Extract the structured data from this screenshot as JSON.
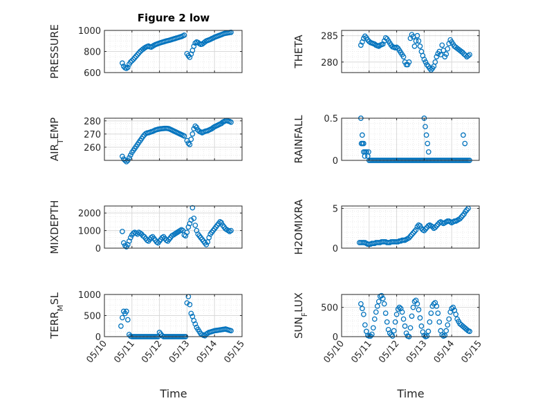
{
  "figure": {
    "title": "Figure 2 low",
    "xlabel": "Time"
  },
  "colors": {
    "marker": "#0072BD",
    "axis": "#262626",
    "grid": "#d9d9d9"
  },
  "x_ticks": [
    {
      "value": 0,
      "label": "05/10"
    },
    {
      "value": 1,
      "label": "05/11"
    },
    {
      "value": 2,
      "label": "05/12"
    },
    {
      "value": 3,
      "label": "05/13"
    },
    {
      "value": 4,
      "label": "05/14"
    },
    {
      "value": 5,
      "label": "05/15"
    }
  ],
  "chart_data": [
    {
      "type": "scatter",
      "title": "Figure 2 low",
      "xlabel": "",
      "ylabel": "PRESSURE",
      "ylim": [
        600,
        1000
      ],
      "yticks": [
        600,
        800,
        1000
      ],
      "grid": "on",
      "x": [
        0.65,
        0.7,
        0.75,
        0.8,
        0.85,
        0.9,
        0.95,
        1.0,
        1.05,
        1.1,
        1.15,
        1.2,
        1.25,
        1.3,
        1.35,
        1.4,
        1.45,
        1.5,
        1.55,
        1.6,
        1.65,
        1.7,
        1.75,
        1.8,
        1.85,
        1.9,
        1.95,
        2.0,
        2.05,
        2.1,
        2.15,
        2.2,
        2.25,
        2.3,
        2.35,
        2.4,
        2.45,
        2.5,
        2.55,
        2.6,
        2.65,
        2.7,
        2.75,
        2.8,
        2.85,
        2.9,
        3.0,
        3.05,
        3.1,
        3.15,
        3.2,
        3.25,
        3.3,
        3.35,
        3.4,
        3.45,
        3.5,
        3.55,
        3.6,
        3.65,
        3.7,
        3.75,
        3.8,
        3.85,
        3.9,
        3.95,
        4.0,
        4.05,
        4.1,
        4.15,
        4.2,
        4.25,
        4.3,
        4.35,
        4.4,
        4.45,
        4.5,
        4.55,
        4.6
      ],
      "y": [
        690,
        660,
        645,
        640,
        650,
        680,
        700,
        712,
        725,
        740,
        755,
        770,
        785,
        800,
        812,
        822,
        832,
        840,
        847,
        852,
        845,
        842,
        850,
        858,
        865,
        870,
        875,
        880,
        884,
        888,
        892,
        896,
        900,
        903,
        906,
        910,
        914,
        918,
        922,
        926,
        930,
        934,
        938,
        942,
        948,
        955,
        780,
        760,
        745,
        775,
        810,
        850,
        880,
        890,
        885,
        875,
        868,
        870,
        880,
        890,
        900,
        905,
        910,
        915,
        922,
        928,
        935,
        940,
        945,
        950,
        955,
        960,
        965,
        970,
        973,
        975,
        978,
        980,
        982
      ]
    },
    {
      "type": "scatter",
      "xlabel": "",
      "ylabel": "THETA",
      "ylim": [
        278,
        286
      ],
      "yticks": [
        280,
        285
      ],
      "grid": "on",
      "x": [
        0.7,
        0.75,
        0.8,
        0.85,
        0.9,
        0.95,
        1.0,
        1.05,
        1.1,
        1.15,
        1.2,
        1.25,
        1.3,
        1.35,
        1.4,
        1.45,
        1.5,
        1.55,
        1.6,
        1.65,
        1.7,
        1.75,
        1.8,
        1.85,
        1.9,
        1.95,
        2.0,
        2.05,
        2.1,
        2.15,
        2.2,
        2.25,
        2.3,
        2.35,
        2.4,
        2.45,
        2.5,
        2.55,
        2.6,
        2.65,
        2.7,
        2.75,
        2.8,
        2.85,
        2.9,
        2.95,
        3.0,
        3.05,
        3.1,
        3.15,
        3.2,
        3.25,
        3.3,
        3.35,
        3.4,
        3.45,
        3.5,
        3.55,
        3.6,
        3.65,
        3.7,
        3.75,
        3.8,
        3.85,
        3.9,
        3.95,
        4.0,
        4.05,
        4.1,
        4.15,
        4.2,
        4.25,
        4.3,
        4.35,
        4.4,
        4.45,
        4.5,
        4.55,
        4.6,
        4.65
      ],
      "y": [
        283.2,
        283.8,
        284.5,
        284.9,
        284.6,
        284.2,
        283.9,
        283.7,
        283.6,
        283.5,
        283.4,
        283.2,
        283.1,
        283.0,
        283.2,
        283.3,
        283.4,
        284.0,
        284.6,
        284.4,
        284.0,
        283.6,
        283.2,
        282.9,
        282.8,
        282.7,
        282.8,
        282.6,
        282.2,
        281.8,
        281.4,
        281.0,
        280.0,
        279.5,
        279.5,
        280.0,
        284.5,
        285.2,
        284.8,
        283.0,
        284.0,
        285.0,
        284.0,
        283.0,
        282.0,
        281.2,
        280.5,
        280.0,
        279.5,
        279.2,
        278.8,
        278.5,
        278.8,
        279.2,
        280.0,
        281.0,
        281.6,
        282.0,
        281.4,
        283.2,
        282.2,
        281.0,
        281.5,
        282.5,
        283.5,
        284.2,
        283.8,
        283.4,
        283.0,
        282.8,
        282.6,
        282.4,
        282.2,
        282.0,
        281.8,
        281.5,
        281.3,
        281.0,
        281.2,
        281.4
      ]
    },
    {
      "type": "scatter",
      "xlabel": "",
      "ylabel": "AIR_TEMP",
      "ylim": [
        250,
        282
      ],
      "yticks": [
        260,
        270,
        280
      ],
      "grid": "on",
      "x": [
        0.65,
        0.7,
        0.75,
        0.8,
        0.85,
        0.9,
        0.95,
        1.0,
        1.05,
        1.1,
        1.15,
        1.2,
        1.25,
        1.3,
        1.35,
        1.4,
        1.45,
        1.5,
        1.55,
        1.6,
        1.65,
        1.7,
        1.75,
        1.8,
        1.85,
        1.9,
        1.95,
        2.0,
        2.05,
        2.1,
        2.15,
        2.2,
        2.25,
        2.3,
        2.35,
        2.4,
        2.45,
        2.5,
        2.55,
        2.6,
        2.65,
        2.7,
        2.75,
        2.8,
        2.85,
        2.9,
        3.0,
        3.05,
        3.1,
        3.15,
        3.2,
        3.25,
        3.3,
        3.35,
        3.4,
        3.45,
        3.5,
        3.55,
        3.6,
        3.65,
        3.7,
        3.75,
        3.8,
        3.85,
        3.9,
        3.95,
        4.0,
        4.05,
        4.1,
        4.15,
        4.2,
        4.25,
        4.3,
        4.35,
        4.4,
        4.45,
        4.5,
        4.55,
        4.6
      ],
      "y": [
        253,
        251,
        250,
        249,
        250,
        252,
        254,
        256,
        257.5,
        259,
        260.5,
        262,
        263.5,
        265,
        266.5,
        268,
        269.3,
        270.3,
        270.8,
        271,
        271.3,
        271.7,
        272,
        272.5,
        273,
        273.3,
        273.6,
        273.8,
        274,
        274.1,
        274.2,
        274.3,
        274.3,
        274.2,
        274,
        273.5,
        273,
        272.5,
        272,
        271.5,
        271,
        270.5,
        270,
        269.5,
        269,
        268.5,
        265,
        263,
        262,
        266,
        270,
        274,
        276,
        275,
        273,
        272,
        271.5,
        271,
        271.5,
        272,
        272.3,
        272.5,
        273,
        273.5,
        274,
        274.8,
        275.5,
        276,
        276.5,
        277,
        277.5,
        278,
        279,
        279.5,
        280,
        280.3,
        279.8,
        279.5,
        279
      ]
    },
    {
      "type": "scatter",
      "xlabel": "",
      "ylabel": "RAINFALL",
      "ylim": [
        0,
        0.5
      ],
      "yticks": [
        0,
        0.5
      ],
      "grid": "on",
      "x": [
        0.7,
        0.75,
        0.8,
        0.85,
        0.9,
        0.95,
        1.0,
        1.05,
        1.1,
        1.15,
        1.2,
        1.25,
        1.3,
        1.35,
        1.4,
        1.45,
        1.5,
        1.55,
        1.6,
        1.65,
        1.7,
        1.75,
        1.8,
        1.85,
        1.9,
        1.95,
        2.0,
        2.05,
        2.1,
        2.15,
        2.2,
        2.25,
        2.3,
        2.35,
        2.4,
        2.45,
        2.5,
        2.55,
        2.6,
        2.65,
        2.7,
        2.75,
        2.8,
        2.85,
        2.9,
        2.95,
        3.0,
        3.05,
        3.1,
        3.15,
        3.2,
        3.25,
        3.3,
        3.35,
        3.4,
        3.45,
        3.5,
        3.55,
        3.6,
        3.65,
        3.7,
        3.75,
        3.8,
        3.85,
        3.9,
        3.95,
        4.0,
        4.05,
        4.1,
        4.15,
        4.2,
        4.25,
        4.3,
        4.35,
        4.4,
        4.45,
        4.5,
        4.55,
        4.6,
        4.65,
        0.72,
        0.76,
        0.8,
        0.84,
        0.9,
        0.98,
        3.0,
        3.04,
        3.08,
        3.12,
        3.16,
        4.42,
        4.48
      ],
      "y": [
        0.5,
        0.3,
        0.2,
        0.1,
        0.1,
        0.05,
        0,
        0,
        0,
        0,
        0,
        0,
        0,
        0,
        0,
        0,
        0,
        0,
        0,
        0,
        0,
        0,
        0,
        0,
        0,
        0,
        0,
        0,
        0,
        0,
        0,
        0,
        0,
        0,
        0,
        0,
        0,
        0,
        0,
        0,
        0,
        0,
        0,
        0,
        0,
        0,
        0,
        0,
        0,
        0,
        0,
        0,
        0,
        0,
        0,
        0,
        0,
        0,
        0,
        0,
        0,
        0,
        0,
        0,
        0,
        0,
        0,
        0,
        0,
        0,
        0,
        0,
        0,
        0,
        0,
        0,
        0,
        0,
        0,
        0,
        0.2,
        0.2,
        0.1,
        0.05,
        0.1,
        0.1,
        0.5,
        0.4,
        0.3,
        0.2,
        0.1,
        0.3,
        0.2
      ]
    },
    {
      "type": "scatter",
      "xlabel": "",
      "ylabel": "MIXDEPTH",
      "ylim": [
        0,
        2400
      ],
      "yticks": [
        0,
        1000,
        2000
      ],
      "grid": "on",
      "x": [
        0.65,
        0.7,
        0.75,
        0.8,
        0.85,
        0.9,
        0.95,
        1.0,
        1.05,
        1.1,
        1.15,
        1.2,
        1.25,
        1.3,
        1.35,
        1.4,
        1.45,
        1.5,
        1.55,
        1.6,
        1.65,
        1.7,
        1.75,
        1.8,
        1.85,
        1.9,
        1.95,
        2.0,
        2.05,
        2.1,
        2.15,
        2.2,
        2.25,
        2.3,
        2.35,
        2.4,
        2.45,
        2.5,
        2.55,
        2.6,
        2.65,
        2.7,
        2.75,
        2.8,
        2.85,
        2.9,
        2.95,
        3.0,
        3.05,
        3.1,
        3.15,
        3.2,
        3.25,
        3.3,
        3.35,
        3.4,
        3.45,
        3.5,
        3.55,
        3.6,
        3.65,
        3.7,
        3.75,
        3.8,
        3.85,
        3.9,
        3.95,
        4.0,
        4.05,
        4.1,
        4.15,
        4.2,
        4.25,
        4.3,
        4.35,
        4.4,
        4.45,
        4.5,
        4.55,
        4.6
      ],
      "y": [
        950,
        300,
        150,
        80,
        200,
        400,
        600,
        750,
        850,
        900,
        850,
        800,
        900,
        850,
        800,
        700,
        650,
        550,
        450,
        400,
        500,
        600,
        650,
        550,
        450,
        350,
        300,
        400,
        500,
        600,
        650,
        550,
        450,
        400,
        500,
        600,
        700,
        750,
        800,
        850,
        900,
        950,
        1000,
        1050,
        1000,
        750,
        700,
        900,
        1200,
        1400,
        1600,
        2300,
        1700,
        1300,
        1000,
        800,
        700,
        600,
        500,
        400,
        300,
        200,
        350,
        600,
        800,
        900,
        1000,
        1100,
        1200,
        1300,
        1400,
        1500,
        1450,
        1300,
        1200,
        1100,
        1050,
        1000,
        950,
        1000
      ]
    },
    {
      "type": "scatter",
      "xlabel": "",
      "ylabel": "H2OMIXRA",
      "ylim": [
        0,
        5.3
      ],
      "yticks": [
        0,
        5
      ],
      "grid": "on",
      "x": [
        0.65,
        0.7,
        0.75,
        0.8,
        0.85,
        0.9,
        0.95,
        1.0,
        1.05,
        1.1,
        1.15,
        1.2,
        1.25,
        1.3,
        1.35,
        1.4,
        1.45,
        1.5,
        1.55,
        1.6,
        1.65,
        1.7,
        1.75,
        1.8,
        1.85,
        1.9,
        1.95,
        2.0,
        2.05,
        2.1,
        2.15,
        2.2,
        2.25,
        2.3,
        2.35,
        2.4,
        2.45,
        2.5,
        2.55,
        2.6,
        2.65,
        2.7,
        2.75,
        2.8,
        2.85,
        2.9,
        2.95,
        3.0,
        3.05,
        3.1,
        3.15,
        3.2,
        3.25,
        3.3,
        3.35,
        3.4,
        3.45,
        3.5,
        3.55,
        3.6,
        3.65,
        3.7,
        3.75,
        3.8,
        3.85,
        3.9,
        3.95,
        4.0,
        4.05,
        4.1,
        4.15,
        4.2,
        4.25,
        4.3,
        4.35,
        4.4,
        4.45,
        4.5,
        4.55,
        4.6
      ],
      "y": [
        0.7,
        0.7,
        0.7,
        0.7,
        0.7,
        0.6,
        0.5,
        0.5,
        0.5,
        0.6,
        0.6,
        0.6,
        0.7,
        0.7,
        0.7,
        0.7,
        0.8,
        0.8,
        0.8,
        0.8,
        0.7,
        0.7,
        0.7,
        0.8,
        0.8,
        0.8,
        0.8,
        0.8,
        0.8,
        0.9,
        0.9,
        1.0,
        1.0,
        1.0,
        1.1,
        1.2,
        1.3,
        1.5,
        1.7,
        1.9,
        2.1,
        2.3,
        2.7,
        2.9,
        2.8,
        2.5,
        2.3,
        2.2,
        2.4,
        2.6,
        2.8,
        2.9,
        2.8,
        2.7,
        2.5,
        2.6,
        2.8,
        3.0,
        3.2,
        3.3,
        3.2,
        3.1,
        3.2,
        3.3,
        3.4,
        3.4,
        3.3,
        3.2,
        3.3,
        3.4,
        3.4,
        3.5,
        3.6,
        3.7,
        3.9,
        4.1,
        4.3,
        4.6,
        4.8,
        5.0
      ]
    },
    {
      "type": "scatter",
      "xlabel": "Time",
      "ylabel": "TERR_MSL",
      "ylim": [
        0,
        1000
      ],
      "yticks": [
        0,
        500,
        1000
      ],
      "grid": "on",
      "x": [
        0.6,
        0.65,
        0.7,
        0.75,
        0.8,
        0.85,
        0.9,
        0.95,
        1.0,
        1.05,
        1.1,
        1.15,
        1.2,
        1.25,
        1.3,
        1.35,
        1.4,
        1.45,
        1.5,
        1.55,
        1.6,
        1.65,
        1.7,
        1.75,
        1.8,
        1.85,
        1.9,
        1.95,
        2.0,
        2.05,
        2.1,
        2.15,
        2.2,
        2.25,
        2.3,
        2.35,
        2.4,
        2.45,
        2.5,
        2.55,
        2.6,
        2.65,
        2.7,
        2.75,
        2.8,
        2.85,
        2.9,
        2.95,
        3.0,
        3.05,
        3.1,
        3.15,
        3.2,
        3.25,
        3.3,
        3.35,
        3.4,
        3.45,
        3.5,
        3.55,
        3.6,
        3.65,
        3.7,
        3.75,
        3.8,
        3.85,
        3.9,
        3.95,
        4.0,
        4.05,
        4.1,
        4.15,
        4.2,
        4.25,
        4.3,
        4.35,
        4.4,
        4.45,
        4.5,
        4.55,
        4.6
      ],
      "y": [
        250,
        450,
        600,
        550,
        600,
        400,
        50,
        10,
        0,
        0,
        0,
        0,
        0,
        0,
        0,
        0,
        0,
        0,
        0,
        0,
        0,
        0,
        0,
        0,
        0,
        0,
        0,
        0,
        100,
        60,
        20,
        0,
        0,
        0,
        0,
        0,
        0,
        0,
        0,
        0,
        0,
        0,
        0,
        0,
        0,
        0,
        0,
        0,
        800,
        950,
        760,
        550,
        480,
        380,
        300,
        220,
        170,
        120,
        70,
        50,
        30,
        20,
        60,
        80,
        100,
        110,
        120,
        130,
        140,
        145,
        150,
        155,
        160,
        165,
        170,
        175,
        180,
        170,
        160,
        150,
        140
      ]
    },
    {
      "type": "scatter",
      "xlabel": "Time",
      "ylabel": "SUN_FLUX",
      "ylim": [
        0,
        720
      ],
      "yticks": [
        0,
        500
      ],
      "grid": "on",
      "x": [
        0.7,
        0.75,
        0.8,
        0.85,
        0.9,
        0.95,
        1.0,
        1.05,
        1.1,
        1.15,
        1.2,
        1.25,
        1.3,
        1.35,
        1.4,
        1.45,
        1.5,
        1.55,
        1.6,
        1.65,
        1.7,
        1.75,
        1.8,
        1.85,
        1.9,
        1.95,
        2.0,
        2.05,
        2.1,
        2.15,
        2.2,
        2.25,
        2.3,
        2.35,
        2.4,
        2.45,
        2.5,
        2.55,
        2.6,
        2.65,
        2.7,
        2.75,
        2.8,
        2.85,
        2.9,
        2.95,
        3.0,
        3.05,
        3.1,
        3.15,
        3.2,
        3.25,
        3.3,
        3.35,
        3.4,
        3.45,
        3.5,
        3.55,
        3.6,
        3.65,
        3.7,
        3.75,
        3.8,
        3.85,
        3.9,
        3.95,
        4.0,
        4.05,
        4.1,
        4.15,
        4.2,
        4.25,
        4.3,
        4.35,
        4.4,
        4.45,
        4.5,
        4.55,
        4.6,
        4.65
      ],
      "y": [
        560,
        480,
        380,
        200,
        90,
        20,
        10,
        10,
        40,
        150,
        300,
        420,
        520,
        600,
        690,
        700,
        650,
        560,
        400,
        250,
        120,
        60,
        30,
        10,
        100,
        250,
        380,
        470,
        500,
        480,
        420,
        300,
        180,
        60,
        10,
        0,
        150,
        350,
        500,
        600,
        620,
        560,
        460,
        320,
        180,
        80,
        20,
        0,
        10,
        90,
        250,
        400,
        520,
        560,
        580,
        520,
        400,
        250,
        100,
        30,
        10,
        20,
        100,
        200,
        300,
        420,
        480,
        500,
        450,
        380,
        300,
        260,
        220,
        200,
        180,
        160,
        140,
        120,
        100,
        90
      ]
    }
  ]
}
